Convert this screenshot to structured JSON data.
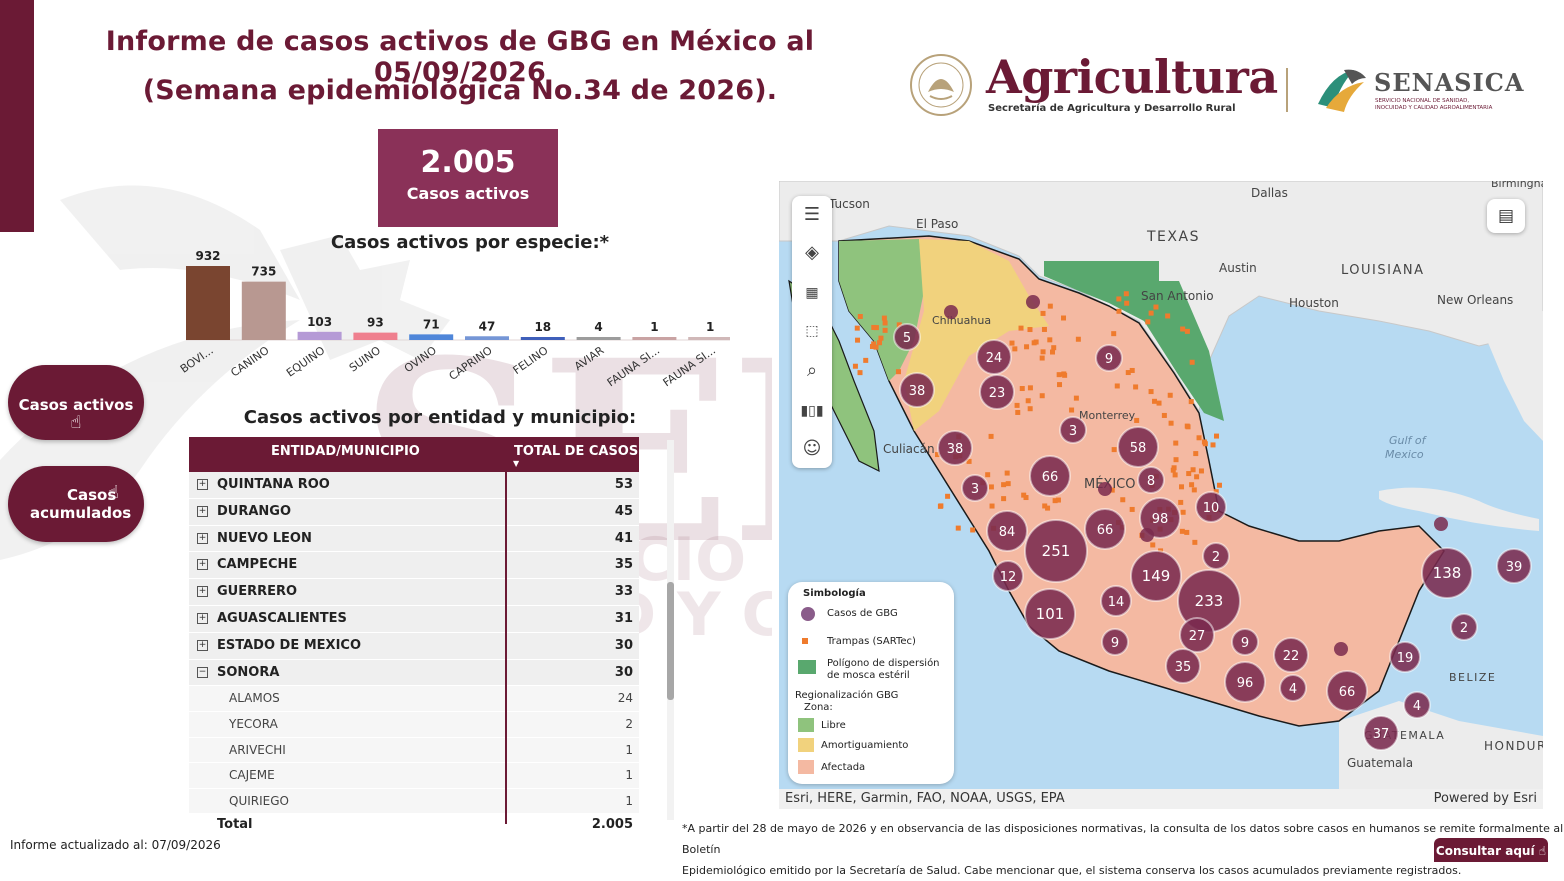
{
  "header": {
    "title_line1": "Informe de casos activos de GBG en México al 05/09/2026",
    "title_line2": "(Semana epidemiológica No.34 de 2026)."
  },
  "logos": {
    "agricultura": "Agricultura",
    "agricultura_sub": "Secretaría de Agricultura y Desarrollo Rural",
    "senasica": "SENASICA",
    "senasica_sub1": "SERVICIO NACIONAL DE SANIDAD,",
    "senasica_sub2": "INOCUIDAD Y CALIDAD AGROALIMENTARIA"
  },
  "kpi": {
    "value": "2.005",
    "label": "Casos activos"
  },
  "species_chart": {
    "title": "Casos activos por especie:*",
    "chart_data": {
      "type": "bar",
      "categories": [
        "BOVI...",
        "CANINO",
        "EQUINO",
        "SUINO",
        "OVINO",
        "CAPRINO",
        "FELINO",
        "AVIAR",
        "FAUNA SI...",
        "FAUNA SI..."
      ],
      "values": [
        932,
        735,
        103,
        93,
        71,
        47,
        18,
        4,
        1,
        1
      ],
      "colors": [
        "#7a4530",
        "#b89891",
        "#b59ad6",
        "#ef7f8e",
        "#4f86d9",
        "#7596d6",
        "#3f5fba",
        "#9c9c9c",
        "#c9a3a3",
        "#d0b8b8"
      ]
    }
  },
  "buttons": {
    "active": "Casos activos",
    "accum_line1": "Casos",
    "accum_line2": "acumulados"
  },
  "table": {
    "title": "Casos activos por entidad y municipio:",
    "col_entity": "ENTIDAD/MUNICIPIO",
    "col_total": "TOTAL DE CASOS",
    "rows": [
      {
        "name": "QUINTANA ROO",
        "value": "53",
        "level": "parent",
        "exp": "⊞"
      },
      {
        "name": "DURANGO",
        "value": "45",
        "level": "parent",
        "exp": "⊞"
      },
      {
        "name": "NUEVO LEON",
        "value": "41",
        "level": "parent",
        "exp": "⊞"
      },
      {
        "name": "CAMPECHE",
        "value": "35",
        "level": "parent",
        "exp": "⊞"
      },
      {
        "name": "GUERRERO",
        "value": "33",
        "level": "parent",
        "exp": "⊞"
      },
      {
        "name": "AGUASCALIENTES",
        "value": "31",
        "level": "parent",
        "exp": "⊞"
      },
      {
        "name": "ESTADO DE MEXICO",
        "value": "30",
        "level": "parent",
        "exp": "⊞"
      },
      {
        "name": "SONORA",
        "value": "30",
        "level": "parent",
        "exp": "⊟"
      },
      {
        "name": "ALAMOS",
        "value": "24",
        "level": "child"
      },
      {
        "name": "YECORA",
        "value": "2",
        "level": "child"
      },
      {
        "name": "ARIVECHI",
        "value": "1",
        "level": "child"
      },
      {
        "name": "CAJEME",
        "value": "1",
        "level": "child"
      },
      {
        "name": "QUIRIEGO",
        "value": "1",
        "level": "child"
      }
    ],
    "total_label": "Total",
    "total_value": "2.005"
  },
  "map": {
    "place_labels": [
      {
        "t": "Dallas"
      },
      {
        "t": "TEXAS"
      },
      {
        "t": "Austin"
      },
      {
        "t": "San Antonio"
      },
      {
        "t": "Houston"
      },
      {
        "t": "LOUISIANA"
      },
      {
        "t": "New Orleans"
      },
      {
        "t": "El Paso"
      },
      {
        "t": "Tucson"
      },
      {
        "t": "Chihuahua"
      },
      {
        "t": "Culiacán"
      },
      {
        "t": "Monterrey"
      },
      {
        "t": "Gulf of"
      },
      {
        "t": "Mexico"
      },
      {
        "t": "BELIZE"
      },
      {
        "t": "GUATEMALA"
      },
      {
        "t": "Guatemala"
      },
      {
        "t": "HONDURAS"
      },
      {
        "t": "MÉXICO"
      },
      {
        "t": "Birmingham"
      }
    ],
    "clusters": [
      5,
      38,
      24,
      23,
      9,
      3,
      38,
      58,
      66,
      8,
      3,
      84,
      251,
      66,
      98,
      10,
      2,
      12,
      149,
      233,
      14,
      101,
      9,
      27,
      9,
      35,
      96,
      22,
      4,
      66,
      4,
      138,
      39,
      2,
      19,
      37
    ],
    "attribution": "Esri, HERE, Garmin, FAO, NOAA, USGS, EPA",
    "powered": "Powered by Esri",
    "legend": {
      "title": "Simbología",
      "cases": "Casos de GBG",
      "traps": "Trampas (SARTec)",
      "polygon_1": "Polígono de dispersión",
      "polygon_2": "de mosca estéril",
      "region_1": "Regionalización GBG",
      "region_2": "Zona:",
      "free": "Libre",
      "buffer": "Amortiguamiento",
      "affected": "Afectada"
    },
    "colors": {
      "affected": "#f4b9a2",
      "buffer": "#f1d27d",
      "free": "#8fc37d",
      "polygon": "#59a86e",
      "cluster": "#7a2a4e",
      "trap": "#ef7b2d",
      "water": "#b7daf2",
      "land": "#ececec"
    }
  },
  "footnote": {
    "line1": "*A partir del 28 de mayo de 2026 y en observancia de las disposiciones normativas, la consulta de los datos sobre casos en humanos se remite formalmente al Boletín",
    "line2": "Epidemiológico emitido por la Secretaría de Salud. Cabe mencionar que, el sistema conserva los casos acumulados previamente registrados."
  },
  "consult_button": "Consultar aquí",
  "updated": "Informe actualizado al: 07/09/2026"
}
